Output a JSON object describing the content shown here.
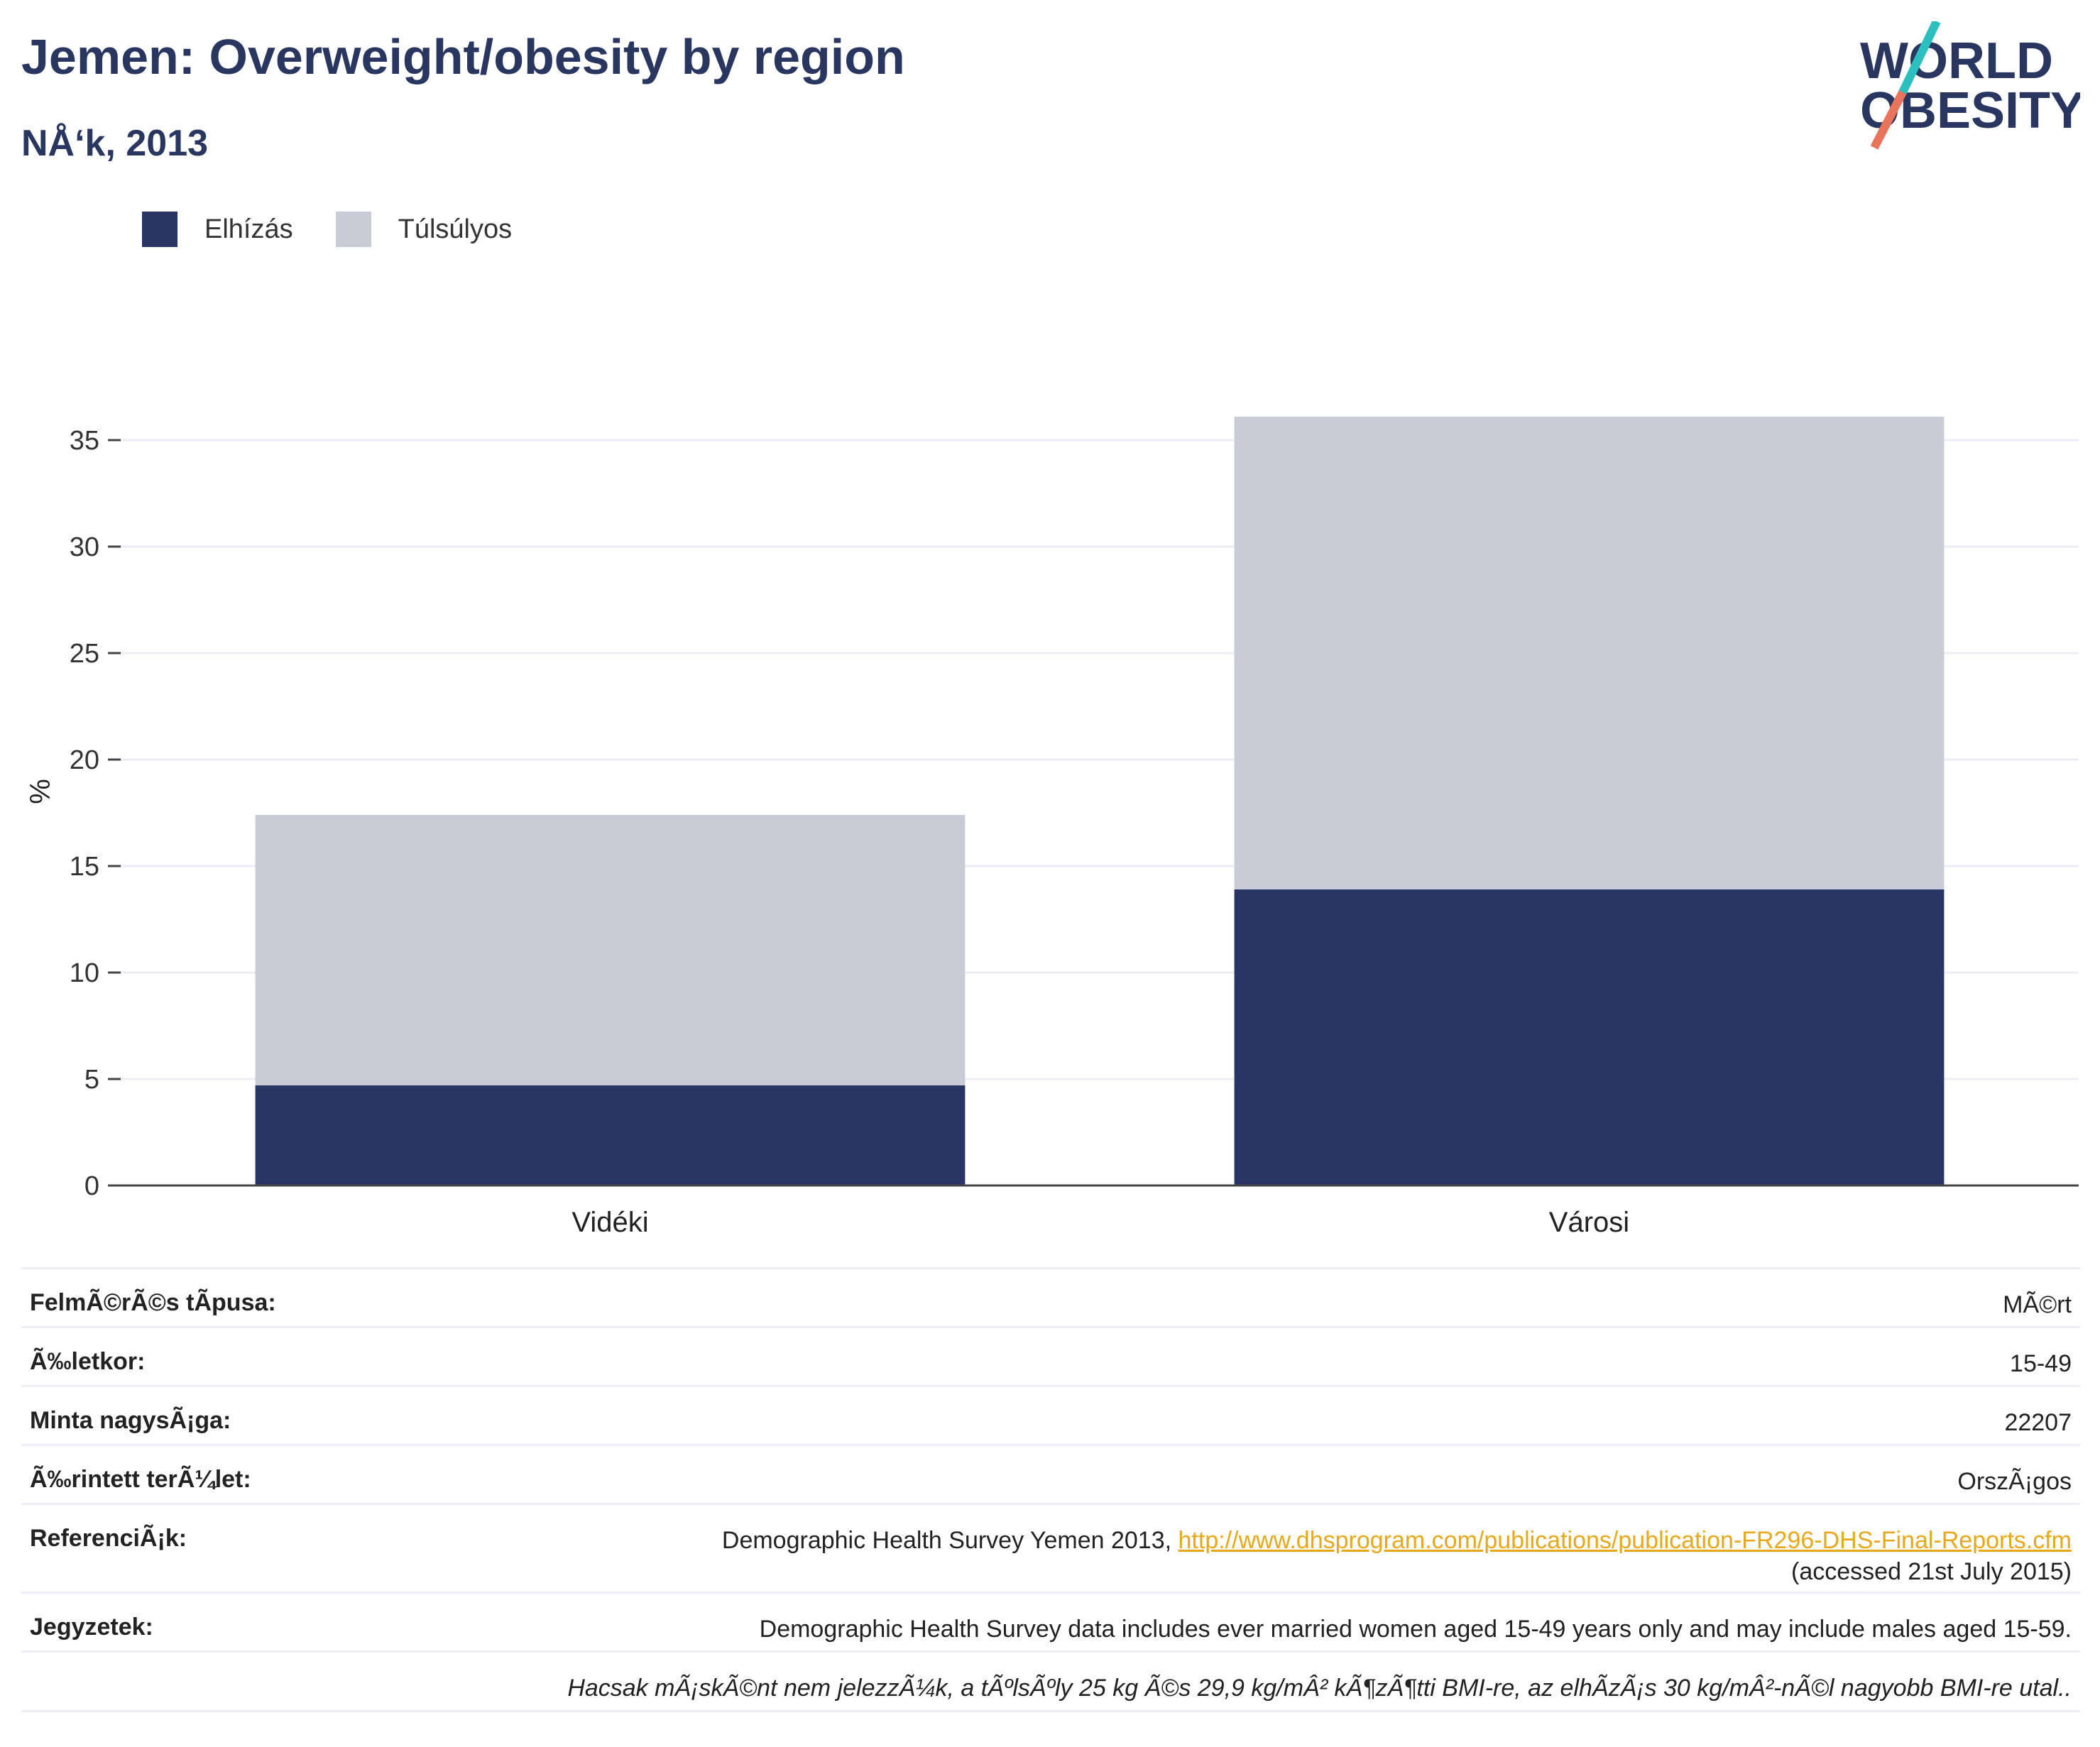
{
  "title": "Jemen: Overweight/obesity by region",
  "subtitle": "NÅ‘k, 2013",
  "logo": {
    "line1": "WORLD",
    "line2": "OBESITY"
  },
  "colors": {
    "obesity": "#293562",
    "overweight": "#c9ccd7",
    "title": "#29365f",
    "link": "#e8a81a",
    "grid": "#eceef5",
    "axis": "#444444"
  },
  "legend": [
    {
      "label": "Elhízás",
      "color": "#293562"
    },
    {
      "label": "Túlsúlyos",
      "color": "#c9ccd7"
    }
  ],
  "chart_data": {
    "type": "bar",
    "stacked": true,
    "categories": [
      "Vidéki",
      "Városi"
    ],
    "series": [
      {
        "name": "Elhízás",
        "values": [
          4.7,
          13.9
        ]
      },
      {
        "name": "Túlsúlyos",
        "values": [
          12.7,
          22.2
        ]
      }
    ],
    "ylabel": "%",
    "ylim": [
      0,
      37
    ],
    "yticks": [
      0,
      5,
      10,
      15,
      20,
      25,
      30,
      35
    ],
    "grid": true,
    "legend_position": "top-left"
  },
  "info": {
    "survey_type": {
      "key": "FelmÃ©rÃ©s tÃpusa:",
      "value": "MÃ©rt"
    },
    "age": {
      "key": "Ã‰letkor:",
      "value": "15-49"
    },
    "sample": {
      "key": "Minta nagysÃ¡ga:",
      "value": "22207"
    },
    "area": {
      "key": "Ã‰rintett terÃ¼let:",
      "value": "OrszÃ¡gos"
    },
    "references": {
      "key": "ReferenciÃ¡k:",
      "text": "Demographic Health Survey Yemen 2013, ",
      "link": "http://www.dhsprogram.com/publications/publication-FR296-DHS-Final-Reports.cfm",
      "accessed": "(accessed 21st July 2015)"
    },
    "notes": {
      "key": "Jegyzetek:",
      "value": "Demographic Health Survey data includes ever married women aged 15-49 years only and may include males aged 15-59."
    },
    "footnote": "Hacsak mÃ¡skÃ©nt nem jelezzÃ¼k, a tÃºlsÃºly 25 kg Ã©s 29,9 kg/mÂ² kÃ¶zÃ¶tti BMI-re, az elhÃ­zÃ¡s 30 kg/mÂ²-nÃ©l nagyobb BMI-re utal.."
  }
}
